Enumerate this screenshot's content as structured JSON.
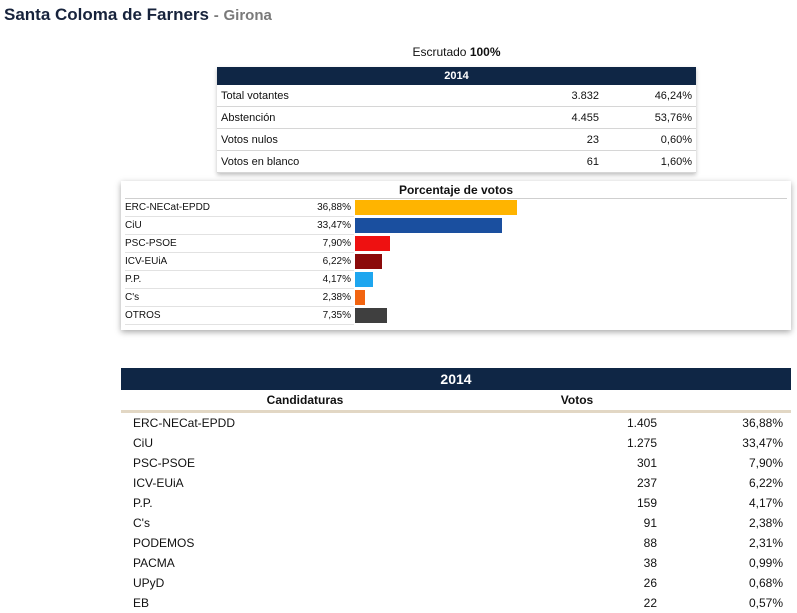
{
  "header": {
    "municipality": "Santa Coloma de Farners",
    "separator": "-",
    "province": "Girona"
  },
  "escrutado": {
    "label": "Escrutado",
    "value": "100%"
  },
  "summary": {
    "year": "2014",
    "rows": [
      {
        "label": "Total votantes",
        "value": "3.832",
        "pct": "46,24%"
      },
      {
        "label": "Abstención",
        "value": "4.455",
        "pct": "53,76%"
      },
      {
        "label": "Votos nulos",
        "value": "23",
        "pct": "0,60%"
      },
      {
        "label": "Votos en blanco",
        "value": "61",
        "pct": "1,60%"
      }
    ]
  },
  "chart_data": {
    "type": "bar",
    "orientation": "horizontal",
    "title": "Porcentaje de votos",
    "categories": [
      "ERC-NECat-EPDD",
      "CiU",
      "PSC-PSOE",
      "ICV-EUiA",
      "P.P.",
      "C's",
      "OTROS"
    ],
    "values": [
      36.88,
      33.47,
      7.9,
      6.22,
      4.17,
      2.38,
      7.35
    ],
    "value_labels": [
      "36,88%",
      "33,47%",
      "7,90%",
      "6,22%",
      "4,17%",
      "2,38%",
      "7,35%"
    ],
    "colors": [
      "#ffb400",
      "#1a4f9f",
      "#ee1111",
      "#8b0a0a",
      "#1ea6ef",
      "#f26410",
      "#3f3f3f"
    ],
    "xlim": [
      0,
      36.88
    ]
  },
  "results": {
    "year": "2014",
    "headers": {
      "candidatura": "Candidaturas",
      "votos": "Votos"
    },
    "rows": [
      {
        "name": "ERC-NECat-EPDD",
        "votes": "1.405",
        "pct": "36,88%"
      },
      {
        "name": "CiU",
        "votes": "1.275",
        "pct": "33,47%"
      },
      {
        "name": "PSC-PSOE",
        "votes": "301",
        "pct": "7,90%"
      },
      {
        "name": "ICV-EUiA",
        "votes": "237",
        "pct": "6,22%"
      },
      {
        "name": "P.P.",
        "votes": "159",
        "pct": "4,17%"
      },
      {
        "name": "C's",
        "votes": "91",
        "pct": "2,38%"
      },
      {
        "name": "PODEMOS",
        "votes": "88",
        "pct": "2,31%"
      },
      {
        "name": "PACMA",
        "votes": "38",
        "pct": "0,99%"
      },
      {
        "name": "UPyD",
        "votes": "26",
        "pct": "0,68%"
      },
      {
        "name": "EB",
        "votes": "22",
        "pct": "0,57%"
      }
    ]
  }
}
